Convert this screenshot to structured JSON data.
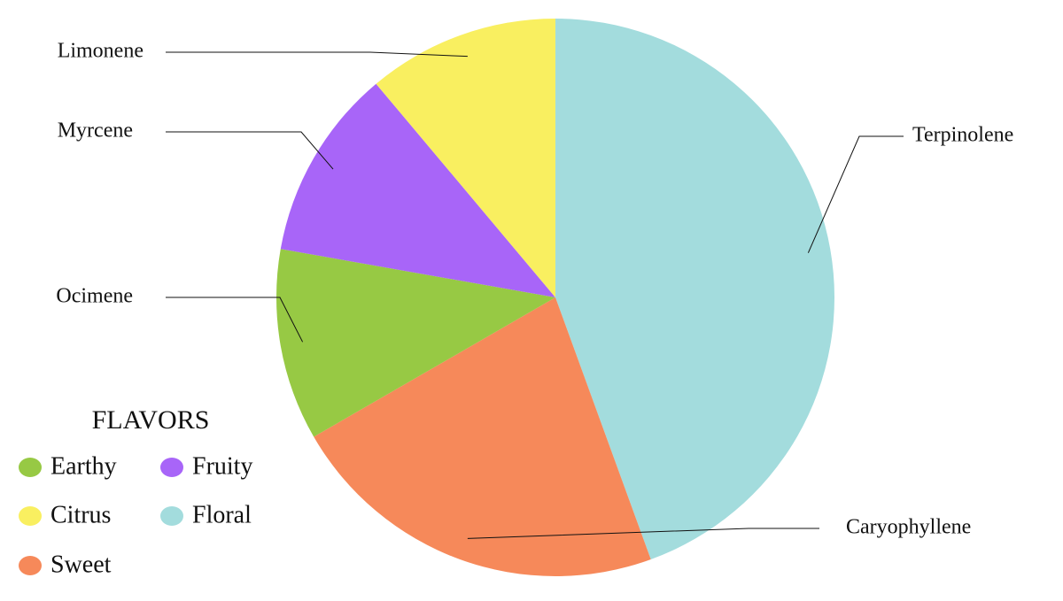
{
  "chart_data": {
    "type": "pie",
    "categories": [
      "Terpinolene",
      "Caryophyllene",
      "Ocimene",
      "Myrcene",
      "Limonene"
    ],
    "values": [
      44.4,
      22.2,
      11.1,
      11.1,
      11.1
    ],
    "colors": [
      "#a3dcdd",
      "#f6895a",
      "#97c944",
      "#a865f8",
      "#f9ef60"
    ],
    "legend": {
      "title": "FLAVORS",
      "items": [
        {
          "label": "Earthy",
          "color": "#97c944"
        },
        {
          "label": "Fruity",
          "color": "#a865f8"
        },
        {
          "label": "Citrus",
          "color": "#f9ef60"
        },
        {
          "label": "Floral",
          "color": "#a3dcdd"
        },
        {
          "label": "Sweet",
          "color": "#f6895a"
        }
      ]
    }
  }
}
